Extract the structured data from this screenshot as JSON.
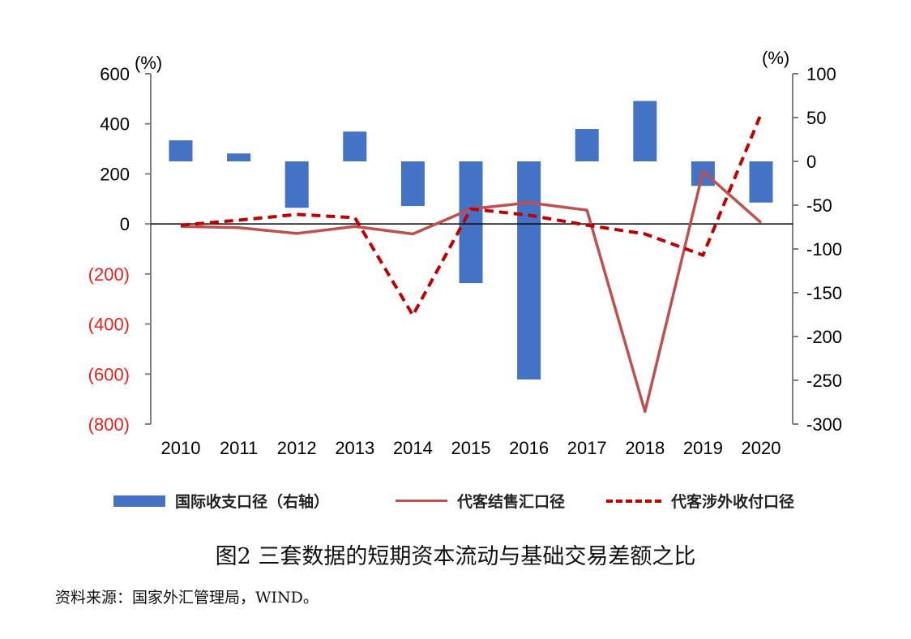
{
  "chart_data": {
    "type": "bar+line",
    "categories": [
      "2010",
      "2011",
      "2012",
      "2013",
      "2014",
      "2015",
      "2016",
      "2017",
      "2018",
      "2019",
      "2020"
    ],
    "series": [
      {
        "name": "国际收支口径（右轴）",
        "kind": "bar",
        "axis": "right",
        "values": [
          24,
          9,
          -53,
          34,
          -51,
          -139,
          -249,
          37,
          69,
          -28,
          -47
        ]
      },
      {
        "name": "代客结售汇口径",
        "kind": "line",
        "axis": "left",
        "values": [
          -10,
          -15,
          -38,
          -10,
          -40,
          60,
          85,
          55,
          -750,
          210,
          5
        ]
      },
      {
        "name": "代客涉外收付口径",
        "kind": "dashed-line",
        "axis": "left",
        "values": [
          -5,
          15,
          38,
          25,
          -365,
          60,
          35,
          -5,
          -40,
          -125,
          440
        ]
      }
    ],
    "left_axis": {
      "unit": "(%)",
      "ylim": [
        -800,
        600
      ],
      "ticks": [
        600,
        400,
        200,
        0,
        -200,
        -400,
        -600,
        -800
      ],
      "tick_labels": [
        "600",
        "400",
        "200",
        "0",
        "(200)",
        "(400)",
        "(600)",
        "(800)"
      ],
      "negative_tick_color": "#e8211a"
    },
    "right_axis": {
      "unit": "(%)",
      "ylim": [
        -300,
        100
      ],
      "ticks": [
        100,
        50,
        0,
        -50,
        -100,
        -150,
        -200,
        -250,
        -300
      ],
      "tick_labels": [
        "100",
        "50",
        "0",
        "-50",
        "-100",
        "-150",
        "-200",
        "-250",
        "-300"
      ]
    },
    "colors": {
      "bar": "#4472c4",
      "line": "#c0504d",
      "dashed": "#c00000",
      "axis": "#7f7f7f"
    },
    "legend_position": "bottom",
    "grid": false
  },
  "legend": {
    "bar_label": "国际收支口径（右轴）",
    "line_label": "代客结售汇口径",
    "dashed_label": "代客涉外收付口径"
  },
  "caption": "图2 三套数据的短期资本流动与基础交易差额之比",
  "source": "资料来源：国家外汇管理局，WIND。"
}
